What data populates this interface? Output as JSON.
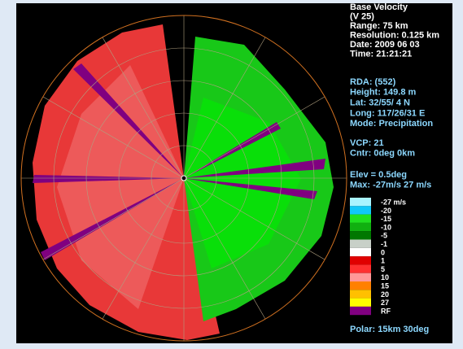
{
  "header": {
    "lines": [
      "Base Velocity",
      "(V 25)",
      "Range: 75 km",
      "Resolution: 0.125 km",
      "Date: 2009 06 03",
      "Time: 21:21:21"
    ]
  },
  "info": {
    "lines": [
      "RDA: (552)",
      "Height: 149.8 m",
      "Lat: 32/55/ 4 N",
      "Long: 117/26/31 E",
      "Mode: Precipitation"
    ]
  },
  "scan": {
    "lines": [
      "VCP: 21",
      "Cntr: 0deg 0km"
    ]
  },
  "elevation": {
    "lines": [
      "Elev = 0.5deg",
      "Max: -27m/s 27 m/s"
    ]
  },
  "legend": [
    {
      "label": "-27 m/s",
      "color": "#a8f4ff"
    },
    {
      "label": "-20",
      "color": "#10c8f8"
    },
    {
      "label": "-15",
      "color": "#20e020"
    },
    {
      "label": "-10",
      "color": "#10b010"
    },
    {
      "label": "-5",
      "color": "#007800"
    },
    {
      "label": "-1",
      "color": "#c8d0c8"
    },
    {
      "label": "0",
      "color": "#ffffff"
    },
    {
      "label": "1",
      "color": "#e00000"
    },
    {
      "label": "5",
      "color": "#ff3030"
    },
    {
      "label": "10",
      "color": "#ff9898"
    },
    {
      "label": "15",
      "color": "#ff8000"
    },
    {
      "label": "20",
      "color": "#ffc000"
    },
    {
      "label": "27",
      "color": "#ffff00"
    },
    {
      "label": "RF",
      "color": "#800080"
    }
  ],
  "footer": "Polar: 15km 30deg"
}
